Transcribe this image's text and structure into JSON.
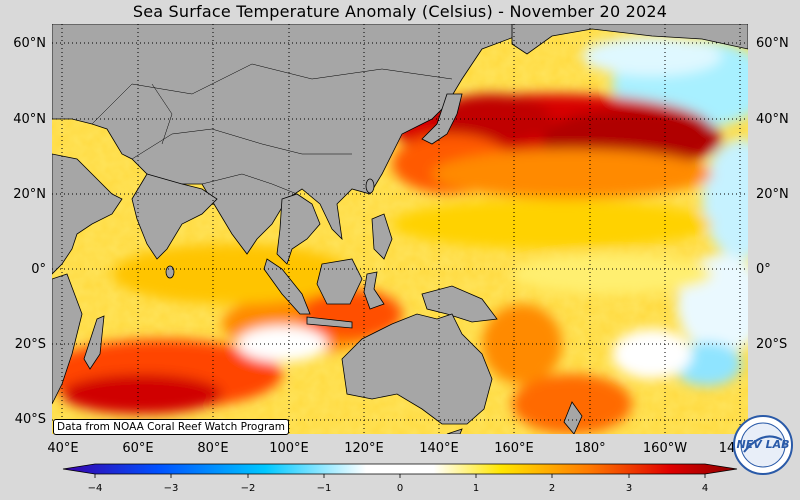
{
  "title": "Sea Surface Temperature Anomaly (Celsius) - November 20 2024",
  "credit": "Data from NOAA Coral Reef Watch Program",
  "logo_text": "NEV LAB",
  "lat_labels": [
    "60°N",
    "40°N",
    "20°N",
    "0°",
    "20°S",
    "40°S"
  ],
  "lon_labels": [
    "40°E",
    "60°E",
    "80°E",
    "100°E",
    "120°E",
    "140°E",
    "160°E",
    "180°",
    "160°W",
    "14"
  ],
  "colorbar": {
    "ticks": [
      "−4",
      "−3",
      "−2",
      "−1",
      "0",
      "1",
      "2",
      "3",
      "4"
    ],
    "min": -4,
    "max": 4,
    "colors": [
      "#3a00a8",
      "#0050ff",
      "#00c8ff",
      "#ffffff",
      "#ffe600",
      "#ff7a00",
      "#e00000",
      "#8a0000"
    ]
  },
  "colors": {
    "land": "#a6a6a6",
    "background": "#d9d9d9",
    "warm": "#ffdd55",
    "hot": "#e00000",
    "cool": "#a8f0ff"
  }
}
